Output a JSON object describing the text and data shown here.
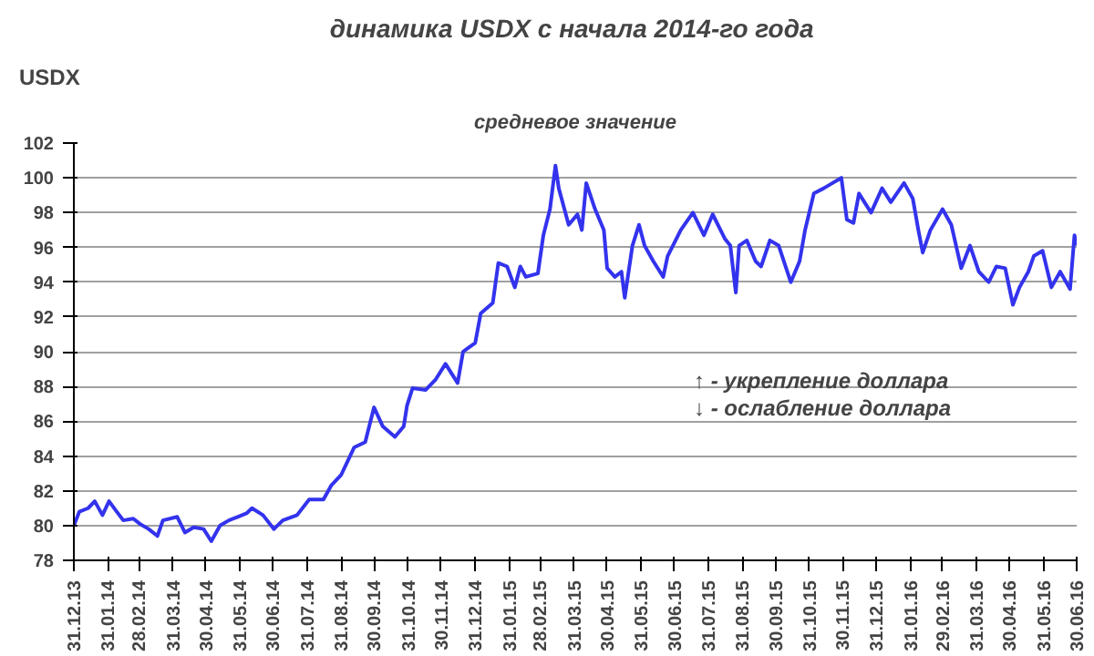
{
  "chart_data": {
    "type": "line",
    "title": "динамика  USDX с начала 2014-го года",
    "subtitle": "средневое значение",
    "ylabel": "USDX",
    "annotations": [
      "↑ - укрепление доллара",
      "↓ - ослабление доллара"
    ],
    "x": [
      "2013-12-31",
      "2014-01-05",
      "2014-01-13",
      "2014-01-19",
      "2014-01-26",
      "2014-02-01",
      "2014-02-08",
      "2014-02-14",
      "2014-02-23",
      "2014-03-01",
      "2014-03-09",
      "2014-03-17",
      "2014-03-22",
      "2014-04-04",
      "2014-04-11",
      "2014-04-19",
      "2014-04-28",
      "2014-05-05",
      "2014-05-13",
      "2014-05-21",
      "2014-05-29",
      "2014-06-06",
      "2014-06-11",
      "2014-06-21",
      "2014-07-01",
      "2014-07-09",
      "2014-07-22",
      "2014-08-02",
      "2014-08-15",
      "2014-08-22",
      "2014-08-31",
      "2014-09-12",
      "2014-09-22",
      "2014-09-30",
      "2014-10-08",
      "2014-10-19",
      "2014-10-27",
      "2014-10-30",
      "2014-11-04",
      "2014-11-16",
      "2014-11-25",
      "2014-12-04",
      "2014-12-15",
      "2014-12-20",
      "2014-12-31",
      "2015-01-05",
      "2015-01-16",
      "2015-01-21",
      "2015-01-29",
      "2015-02-05",
      "2015-02-10",
      "2015-02-15",
      "2015-02-26",
      "2015-03-03",
      "2015-03-09",
      "2015-03-14",
      "2015-03-17",
      "2015-03-26",
      "2015-04-03",
      "2015-04-07",
      "2015-04-11",
      "2015-04-19",
      "2015-04-27",
      "2015-04-30",
      "2015-05-07",
      "2015-05-13",
      "2015-05-16",
      "2015-05-23",
      "2015-05-29",
      "2015-06-03",
      "2015-06-11",
      "2015-06-20",
      "2015-06-24",
      "2015-07-06",
      "2015-07-17",
      "2015-07-27",
      "2015-08-04",
      "2015-08-15",
      "2015-08-20",
      "2015-08-25",
      "2015-08-28",
      "2015-09-04",
      "2015-09-12",
      "2015-09-17",
      "2015-09-25",
      "2015-10-03",
      "2015-10-14",
      "2015-10-22",
      "2015-10-27",
      "2015-11-04",
      "2015-11-13",
      "2015-11-21",
      "2015-11-29",
      "2015-12-04",
      "2015-12-10",
      "2015-12-15",
      "2015-12-26",
      "2016-01-05",
      "2016-01-13",
      "2016-01-25",
      "2016-02-02",
      "2016-02-07",
      "2016-02-11",
      "2016-02-18",
      "2016-02-29",
      "2016-03-08",
      "2016-03-17",
      "2016-03-25",
      "2016-04-02",
      "2016-04-11",
      "2016-04-18",
      "2016-04-26",
      "2016-05-03",
      "2016-05-09",
      "2016-05-17",
      "2016-05-22",
      "2016-05-30",
      "2016-06-07",
      "2016-06-15",
      "2016-06-24",
      "2016-06-28",
      "2016-06-30"
    ],
    "series": [
      {
        "color": "#3333ee",
        "values": [
          80.0,
          80.8,
          81.0,
          81.4,
          80.6,
          81.4,
          80.8,
          80.3,
          80.4,
          80.1,
          79.8,
          79.4,
          80.3,
          80.5,
          79.6,
          79.9,
          79.8,
          79.1,
          80.0,
          80.3,
          80.5,
          80.7,
          81.0,
          80.6,
          79.8,
          80.3,
          80.6,
          81.5,
          81.5,
          82.3,
          82.9,
          84.5,
          84.8,
          86.8,
          85.7,
          85.1,
          85.7,
          86.9,
          87.9,
          87.8,
          88.4,
          89.3,
          88.2,
          90.0,
          90.5,
          92.2,
          92.8,
          95.1,
          94.9,
          93.7,
          94.9,
          94.3,
          94.5,
          96.7,
          98.2,
          100.7,
          99.4,
          97.3,
          97.9,
          97.0,
          99.7,
          98.2,
          97.0,
          94.8,
          94.3,
          94.6,
          93.1,
          96.1,
          97.3,
          96.1,
          95.2,
          94.3,
          95.5,
          97.0,
          98.0,
          96.7,
          97.9,
          96.5,
          96.1,
          93.4,
          96.1,
          96.4,
          95.2,
          94.9,
          96.4,
          96.1,
          94.0,
          95.2,
          97.0,
          99.1,
          99.4,
          99.7,
          100.0,
          97.6,
          97.4,
          99.1,
          98.0,
          99.4,
          98.6,
          99.7,
          98.8,
          97.0,
          95.7,
          97.0,
          98.2,
          97.3,
          94.8,
          96.1,
          94.6,
          94.0,
          94.9,
          94.8,
          92.7,
          93.7,
          94.6,
          95.5,
          95.8,
          93.7,
          94.6,
          93.6,
          96.7,
          96.1
        ]
      }
    ],
    "xlim": [
      "2013-12-31",
      "2016-06-30"
    ],
    "xticks": [
      {
        "value": "2013-12-31",
        "label": "31.12.13"
      },
      {
        "value": "2014-01-31",
        "label": "31.01.14"
      },
      {
        "value": "2014-02-28",
        "label": "28.02.14"
      },
      {
        "value": "2014-03-31",
        "label": "31.03.14"
      },
      {
        "value": "2014-04-30",
        "label": "30.04.14"
      },
      {
        "value": "2014-05-31",
        "label": "31.05.14"
      },
      {
        "value": "2014-06-30",
        "label": "30.06.14"
      },
      {
        "value": "2014-07-31",
        "label": "31.07.14"
      },
      {
        "value": "2014-08-31",
        "label": "31.08.14"
      },
      {
        "value": "2014-09-30",
        "label": "30.09.14"
      },
      {
        "value": "2014-10-31",
        "label": "31.10.14"
      },
      {
        "value": "2014-11-30",
        "label": "30.11.14"
      },
      {
        "value": "2014-12-31",
        "label": "31.12.14"
      },
      {
        "value": "2015-01-31",
        "label": "31.01.15"
      },
      {
        "value": "2015-02-28",
        "label": "28.02.15"
      },
      {
        "value": "2015-03-31",
        "label": "31.03.15"
      },
      {
        "value": "2015-04-30",
        "label": "30.04.15"
      },
      {
        "value": "2015-05-31",
        "label": "31.05.15"
      },
      {
        "value": "2015-06-30",
        "label": "30.06.15"
      },
      {
        "value": "2015-07-31",
        "label": "31.07.15"
      },
      {
        "value": "2015-08-31",
        "label": "31.08.15"
      },
      {
        "value": "2015-09-30",
        "label": "30.09.15"
      },
      {
        "value": "2015-10-31",
        "label": "31.10.15"
      },
      {
        "value": "2015-11-30",
        "label": "30.11.15"
      },
      {
        "value": "2015-12-31",
        "label": "31.12.15"
      },
      {
        "value": "2016-01-31",
        "label": "31.01.16"
      },
      {
        "value": "2016-02-29",
        "label": "29.02.16"
      },
      {
        "value": "2016-03-31",
        "label": "31.03.16"
      },
      {
        "value": "2016-04-30",
        "label": "30.04.16"
      },
      {
        "value": "2016-05-31",
        "label": "31.05.16"
      },
      {
        "value": "2016-06-30",
        "label": "30.06.16"
      }
    ],
    "ylim": [
      78,
      102
    ],
    "yticks": [
      78,
      80,
      82,
      84,
      86,
      88,
      90,
      92,
      94,
      96,
      98,
      100,
      102
    ],
    "grid": "y",
    "marker": "none",
    "line_style": "solid"
  }
}
